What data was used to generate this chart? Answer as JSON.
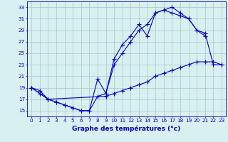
{
  "line1_x": [
    0,
    1,
    2,
    3,
    4,
    5,
    6,
    7,
    8,
    9,
    10,
    11,
    12,
    13,
    14,
    15,
    16,
    17,
    18,
    19,
    20,
    21,
    22,
    23
  ],
  "line1_y": [
    19,
    18,
    17,
    16.5,
    16,
    15.5,
    15,
    15,
    20.5,
    18,
    24,
    26.5,
    28,
    30,
    28,
    32,
    32.5,
    33,
    32,
    31,
    29,
    28.5,
    23,
    23
  ],
  "line2_x": [
    0,
    1,
    2,
    3,
    4,
    5,
    6,
    7,
    8,
    9,
    10,
    11,
    12,
    13,
    14,
    15,
    16,
    17,
    18,
    19,
    20,
    21
  ],
  "line2_y": [
    19,
    18,
    17,
    16.5,
    16,
    15.5,
    15,
    15,
    17.5,
    18,
    23,
    25,
    27,
    29,
    30,
    32,
    32.5,
    32,
    31.5,
    31,
    29,
    28
  ],
  "line3_x": [
    0,
    1,
    2,
    9,
    10,
    11,
    12,
    13,
    14,
    15,
    16,
    17,
    18,
    19,
    20,
    21,
    22,
    23
  ],
  "line3_y": [
    19,
    18.5,
    17,
    17.5,
    18,
    18.5,
    19,
    19.5,
    20,
    21,
    21.5,
    22,
    22.5,
    23,
    23.5,
    23.5,
    23.5,
    23
  ],
  "xlim": [
    -0.5,
    23.5
  ],
  "ylim": [
    14,
    34
  ],
  "yticks": [
    15,
    17,
    19,
    21,
    23,
    25,
    27,
    29,
    31,
    33
  ],
  "xticks": [
    0,
    1,
    2,
    3,
    4,
    5,
    6,
    7,
    8,
    9,
    10,
    11,
    12,
    13,
    14,
    15,
    16,
    17,
    18,
    19,
    20,
    21,
    22,
    23
  ],
  "xlabel": "Graphe des températures (°c)",
  "line_color": "#0000cc",
  "bg_color": "#d8f0f0",
  "grid_color": "#a0c8c8",
  "grid_color2": "#b8d8d8",
  "marker": "+",
  "linewidth": 0.8,
  "markersize": 4,
  "tick_fontsize": 5.2,
  "xlabel_fontsize": 6.5
}
